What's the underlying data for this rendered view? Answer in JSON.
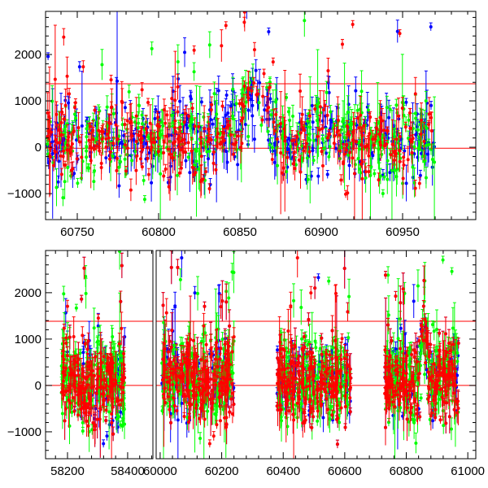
{
  "chart_data": [
    {
      "type": "scatter",
      "panel": "top",
      "title": "",
      "xlabel": "",
      "ylabel": "",
      "xlim": [
        60730.5,
        60995
      ],
      "ylim": [
        -1560,
        2930
      ],
      "xticks": [
        60750,
        60800,
        60850,
        60900,
        60950
      ],
      "yticks": [
        -1000,
        0,
        1000,
        2000
      ],
      "hlines": [
        1370,
        -20
      ],
      "hline_color": "#ff0000",
      "observing_ranges": [
        [
          60731,
          60970
        ]
      ],
      "series": [
        {
          "name": "blue",
          "color": "#0000ff"
        },
        {
          "name": "green",
          "color": "#00ff00"
        },
        {
          "name": "red",
          "color": "#ff0000"
        }
      ],
      "trend": {
        "baseline": 100,
        "peaks": [
          {
            "center": 60858,
            "width": 12,
            "height": 1100
          },
          {
            "center": 60900,
            "width": 8,
            "height": 400
          }
        ]
      },
      "scatter_sd": 420,
      "errorbar_range": [
        80,
        450
      ]
    },
    {
      "type": "scatter",
      "panel": "bottom",
      "title": "",
      "xlabel": "",
      "ylabel": "",
      "broken_axis": true,
      "xlim_segments": [
        [
          58127,
          58484
        ],
        [
          59987,
          61026
        ]
      ],
      "ylim": [
        -1580,
        2910
      ],
      "xticks_segments": [
        [
          58200,
          58400
        ],
        [
          60000,
          60200,
          60400,
          60600,
          60800,
          61000
        ]
      ],
      "yticks": [
        -1000,
        0,
        1000,
        2000
      ],
      "hlines": [
        1385,
        0
      ],
      "hline_color": "#ff0000",
      "observing_ranges": [
        [
          58180,
          58390
        ],
        [
          60005,
          60240
        ],
        [
          60380,
          60620
        ],
        [
          60730,
          60970
        ]
      ],
      "series": [
        {
          "name": "blue",
          "color": "#0000ff"
        },
        {
          "name": "green",
          "color": "#00ff00"
        },
        {
          "name": "red",
          "color": "#ff0000"
        }
      ],
      "trend": {
        "baseline": 100,
        "peaks": [
          {
            "center": 60858,
            "width": 12,
            "height": 1100
          }
        ]
      },
      "scatter_sd": 450,
      "errorbar_range": [
        80,
        450
      ]
    }
  ]
}
